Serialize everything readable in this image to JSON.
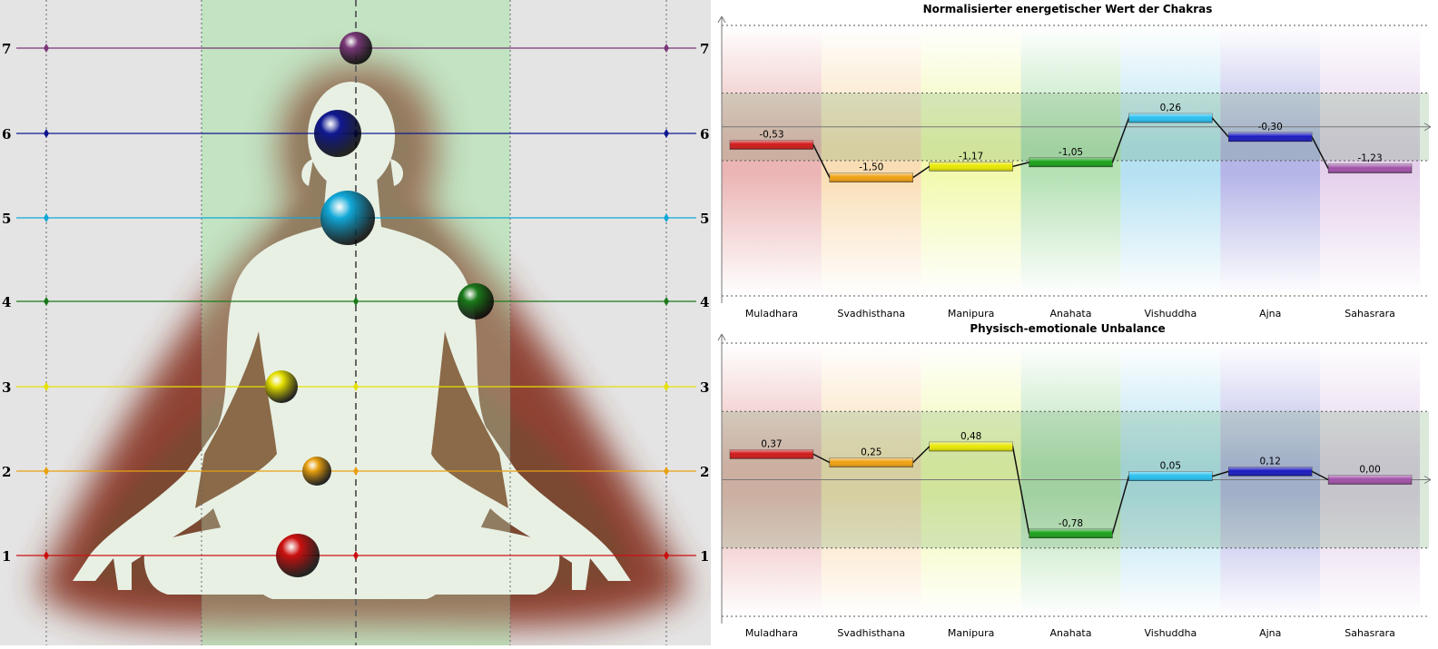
{
  "body_diagram": {
    "levels": [
      "1",
      "2",
      "3",
      "4",
      "5",
      "6",
      "7"
    ],
    "level_colors": [
      "#cc1010",
      "#e8a010",
      "#e6e000",
      "#1a7a1a",
      "#10a8d8",
      "#101890",
      "#7a3878"
    ]
  },
  "chart_data": [
    {
      "type": "bar",
      "title": "Normalisierter energetischer Wert der Chakras",
      "categories": [
        "Muladhara",
        "Svadhisthana",
        "Manipura",
        "Anahata",
        "Vishuddha",
        "Ajna",
        "Sahasrara"
      ],
      "values": [
        -0.53,
        -1.5,
        -1.17,
        -1.05,
        0.26,
        -0.3,
        -1.23
      ],
      "value_labels": [
        "-0,53",
        "-1,50",
        "-1,17",
        "-1,05",
        "0,26",
        "-0,30",
        "-1,23"
      ],
      "colors": [
        "#d01818",
        "#f0a010",
        "#e8e800",
        "#18a018",
        "#28c0f0",
        "#1818c0",
        "#a050a8"
      ],
      "ylim": [
        -5,
        3
      ],
      "grid": true,
      "band_range": [
        -1,
        1
      ]
    },
    {
      "type": "bar",
      "title": "Physisch-emotionale Unbalance",
      "categories": [
        "Muladhara",
        "Svadhisthana",
        "Manipura",
        "Anahata",
        "Vishuddha",
        "Ajna",
        "Sahasrara"
      ],
      "values": [
        0.37,
        0.25,
        0.48,
        -0.78,
        0.05,
        0.12,
        0.0
      ],
      "value_labels": [
        "0,37",
        "0,25",
        "0,48",
        "-0,78",
        "0,05",
        "0,12",
        "0,00"
      ],
      "colors": [
        "#d01818",
        "#f0a010",
        "#e8e800",
        "#18a018",
        "#28c0f0",
        "#1818c0",
        "#a050a8"
      ],
      "ylim": [
        -1.98,
        1.98
      ],
      "grid": true,
      "band_range": [
        -0.99,
        0.99
      ]
    }
  ]
}
